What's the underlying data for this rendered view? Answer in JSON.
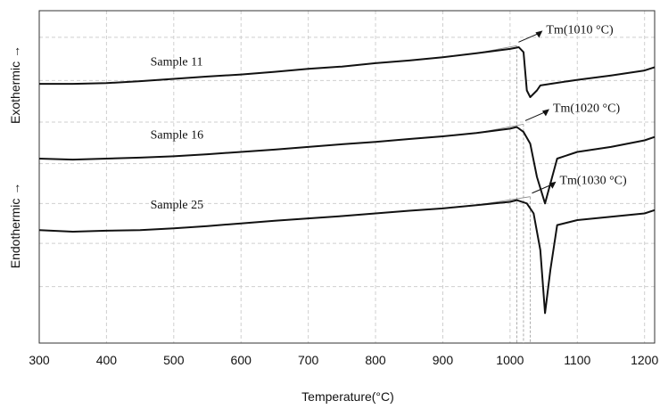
{
  "chart_data": {
    "type": "line",
    "title": "",
    "xlabel": "Temperature(°C)",
    "ylabel_top": "Exothermic →",
    "ylabel_bottom": "Endothermic →",
    "xlim": [
      300,
      1215
    ],
    "ylim": [
      0,
      10
    ],
    "x_ticks": [
      300,
      400,
      500,
      600,
      700,
      800,
      900,
      1000,
      1100,
      1200
    ],
    "y_grid_lines": [
      9.2,
      7.9,
      6.65,
      5.4,
      4.2,
      3.0,
      1.7
    ],
    "grid": true,
    "series": [
      {
        "name": "Sample 11",
        "x": [
          300,
          350,
          400,
          450,
          500,
          550,
          600,
          650,
          700,
          750,
          800,
          850,
          900,
          950,
          1000,
          1013,
          1020,
          1025,
          1030,
          1040,
          1045,
          1060,
          1100,
          1150,
          1200,
          1215
        ],
        "y": [
          7.8,
          7.8,
          7.82,
          7.88,
          7.95,
          8.02,
          8.08,
          8.16,
          8.25,
          8.32,
          8.42,
          8.5,
          8.6,
          8.72,
          8.85,
          8.9,
          8.75,
          7.6,
          7.4,
          7.6,
          7.75,
          7.8,
          7.92,
          8.05,
          8.2,
          8.3
        ],
        "label_pos": {
          "x": 505,
          "y": 8.35
        },
        "onset": {
          "label": "Tm(1010 °C)",
          "x": 1010
        }
      },
      {
        "name": "Sample 16",
        "x": [
          300,
          350,
          400,
          450,
          500,
          550,
          600,
          650,
          700,
          750,
          800,
          850,
          900,
          950,
          1000,
          1010,
          1020,
          1030,
          1040,
          1052,
          1060,
          1070,
          1100,
          1150,
          1200,
          1215
        ],
        "y": [
          5.55,
          5.52,
          5.55,
          5.58,
          5.62,
          5.68,
          5.75,
          5.82,
          5.9,
          5.98,
          6.05,
          6.14,
          6.22,
          6.32,
          6.45,
          6.5,
          6.35,
          6.0,
          5.0,
          4.2,
          4.8,
          5.55,
          5.75,
          5.9,
          6.1,
          6.2
        ],
        "label_pos": {
          "x": 505,
          "y": 6.15
        },
        "onset": {
          "label": "Tm(1020 °C)",
          "x": 1020
        }
      },
      {
        "name": "Sample 25",
        "x": [
          300,
          350,
          400,
          450,
          500,
          550,
          600,
          650,
          700,
          750,
          800,
          850,
          900,
          950,
          1000,
          1010,
          1025,
          1035,
          1045,
          1052,
          1060,
          1070,
          1100,
          1150,
          1200,
          1215
        ],
        "y": [
          3.4,
          3.35,
          3.38,
          3.4,
          3.45,
          3.52,
          3.6,
          3.68,
          3.75,
          3.82,
          3.9,
          3.98,
          4.05,
          4.15,
          4.25,
          4.3,
          4.2,
          3.9,
          2.8,
          0.9,
          2.2,
          3.55,
          3.7,
          3.8,
          3.9,
          4.0
        ],
        "label_pos": {
          "x": 505,
          "y": 4.05
        },
        "onset": {
          "label": "Tm(1030 °C)",
          "x": 1030
        }
      }
    ]
  }
}
